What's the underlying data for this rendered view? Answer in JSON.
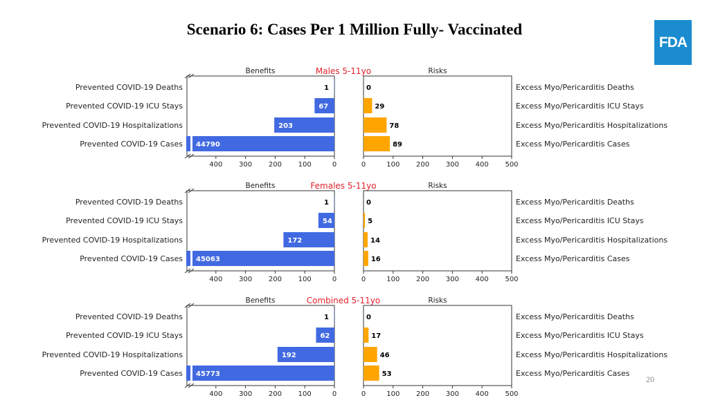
{
  "slide": {
    "title": "Scenario 6: Cases Per 1 Million Fully- Vaccinated",
    "logo_text": "FDA",
    "page_number": "20",
    "logo_color": "#1a8ccf"
  },
  "chart_data": [
    {
      "type": "bar",
      "title": "Males 5-11yo",
      "benefits_label": "Benefits",
      "risks_label": "Risks",
      "benefit_categories": [
        "Prevented COVID-19 Deaths",
        "Prevented COVID-19 ICU Stays",
        "Prevented COVID-19 Hospitalizations",
        "Prevented COVID-19 Cases"
      ],
      "benefit_values": [
        1,
        67,
        203,
        44790
      ],
      "risk_categories": [
        "Excess Myo/Pericarditis Deaths",
        "Excess Myo/Pericarditis ICU Stays",
        "Excess Myo/Pericarditis Hospitalizations",
        "Excess Myo/Pericarditis Cases"
      ],
      "risk_values": [
        0,
        29,
        78,
        89
      ],
      "benefit_ticks": [
        "400",
        "300",
        "200",
        "100",
        "0"
      ],
      "risk_ticks": [
        "0",
        "100",
        "200",
        "300",
        "400",
        "500"
      ],
      "xlim": [
        0,
        500
      ],
      "axis_break": true,
      "colors": {
        "benefit": "#4169e1",
        "risk": "#ffa500",
        "title": "#e0202a"
      }
    },
    {
      "type": "bar",
      "title": "Females 5-11yo",
      "benefits_label": "Benefits",
      "risks_label": "Risks",
      "benefit_categories": [
        "Prevented COVID-19 Deaths",
        "Prevented COVID-19 ICU Stays",
        "Prevented COVID-19 Hospitalizations",
        "Prevented COVID-19 Cases"
      ],
      "benefit_values": [
        1,
        54,
        172,
        45063
      ],
      "risk_categories": [
        "Excess Myo/Pericarditis Deaths",
        "Excess Myo/Pericarditis ICU Stays",
        "Excess Myo/Pericarditis Hospitalizations",
        "Excess Myo/Pericarditis Cases"
      ],
      "risk_values": [
        0,
        5,
        14,
        16
      ],
      "benefit_ticks": [
        "400",
        "300",
        "200",
        "100",
        "0"
      ],
      "risk_ticks": [
        "0",
        "100",
        "200",
        "300",
        "400",
        "500"
      ],
      "xlim": [
        0,
        500
      ],
      "axis_break": true,
      "colors": {
        "benefit": "#4169e1",
        "risk": "#ffa500",
        "title": "#e0202a"
      }
    },
    {
      "type": "bar",
      "title": "Combined 5-11yo",
      "benefits_label": "Benefits",
      "risks_label": "Risks",
      "benefit_categories": [
        "Prevented COVID-19 Deaths",
        "Prevented COVID-19 ICU Stays",
        "Prevented COVID-19 Hospitalizations",
        "Prevented COVID-19 Cases"
      ],
      "benefit_values": [
        1,
        62,
        192,
        45773
      ],
      "risk_categories": [
        "Excess Myo/Pericarditis Deaths",
        "Excess Myo/Pericarditis ICU Stays",
        "Excess Myo/Pericarditis Hospitalizations",
        "Excess Myo/Pericarditis Cases"
      ],
      "risk_values": [
        0,
        17,
        46,
        53
      ],
      "benefit_ticks": [
        "400",
        "300",
        "200",
        "100",
        "0"
      ],
      "risk_ticks": [
        "0",
        "100",
        "200",
        "300",
        "400",
        "500"
      ],
      "xlim": [
        0,
        500
      ],
      "axis_break": true,
      "colors": {
        "benefit": "#4169e1",
        "risk": "#ffa500",
        "title": "#e0202a"
      }
    }
  ]
}
